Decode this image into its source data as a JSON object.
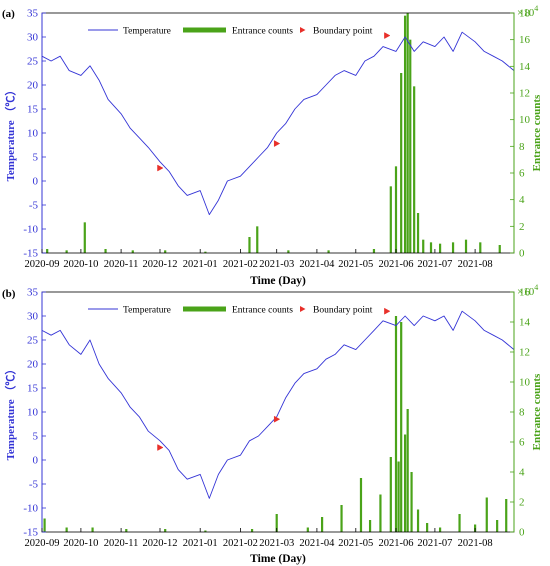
{
  "chart_data": [
    {
      "panel_label": "(a)",
      "type": "line+bar",
      "title": "",
      "xlabel": "Time (Day)",
      "ylabel_left": "Temperature （℃）",
      "ylabel_right": "Entrance counts",
      "y_right_scale_label": "×10",
      "y_right_scale_exp": "4",
      "xlim": [
        "2020-09-01",
        "2021-08-31"
      ],
      "ylim_left": [
        -15,
        35
      ],
      "ylim_right": [
        0,
        18
      ],
      "y_left_ticks": [
        -15,
        -10,
        -5,
        0,
        5,
        10,
        15,
        20,
        25,
        30,
        35
      ],
      "y_right_ticks": [
        0,
        2,
        4,
        6,
        8,
        10,
        12,
        14,
        16,
        18
      ],
      "x_ticks": [
        "2020-09",
        "2020-10",
        "2020-11",
        "2020-12",
        "2021-01",
        "2021-02",
        "2021-03",
        "2021-04",
        "2021-05",
        "2021-06",
        "2021-07",
        "2021-08"
      ],
      "legend_position": "top",
      "grid": false,
      "series": [
        {
          "name": "Temperature",
          "axis": "left",
          "kind": "line",
          "color": "#3434d6",
          "x": [
            "2020-09-01",
            "2020-09-08",
            "2020-09-15",
            "2020-09-22",
            "2020-10-01",
            "2020-10-08",
            "2020-10-15",
            "2020-10-22",
            "2020-11-01",
            "2020-11-08",
            "2020-11-15",
            "2020-11-22",
            "2020-12-01",
            "2020-12-08",
            "2020-12-15",
            "2020-12-22",
            "2021-01-01",
            "2021-01-08",
            "2021-01-15",
            "2021-01-22",
            "2021-02-01",
            "2021-02-08",
            "2021-02-15",
            "2021-02-22",
            "2021-03-01",
            "2021-03-08",
            "2021-03-15",
            "2021-03-22",
            "2021-04-01",
            "2021-04-08",
            "2021-04-15",
            "2021-04-22",
            "2021-05-01",
            "2021-05-08",
            "2021-05-15",
            "2021-05-22",
            "2021-06-01",
            "2021-06-08",
            "2021-06-15",
            "2021-06-22",
            "2021-07-01",
            "2021-07-08",
            "2021-07-15",
            "2021-07-22",
            "2021-08-01",
            "2021-08-08",
            "2021-08-15",
            "2021-08-22",
            "2021-08-31"
          ],
          "values": [
            26,
            25,
            26,
            23,
            22,
            24,
            21,
            17,
            14,
            11,
            9,
            7,
            4,
            2,
            -1,
            -3,
            -2,
            -7,
            -4,
            0,
            1,
            3,
            5,
            7,
            10,
            12,
            15,
            17,
            18,
            20,
            22,
            23,
            22,
            25,
            26,
            28,
            27,
            30,
            27,
            29,
            28,
            30,
            27,
            31,
            29,
            27,
            26,
            25,
            23
          ]
        },
        {
          "name": "Entrance counts",
          "axis": "right",
          "kind": "bar",
          "color": "#4aa319",
          "x": [
            "2020-09-05",
            "2020-09-20",
            "2020-10-04",
            "2020-10-20",
            "2020-11-10",
            "2020-12-05",
            "2021-01-05",
            "2021-02-08",
            "2021-02-14",
            "2021-03-10",
            "2021-04-10",
            "2021-05-15",
            "2021-05-28",
            "2021-06-01",
            "2021-06-05",
            "2021-06-08",
            "2021-06-10",
            "2021-06-12",
            "2021-06-15",
            "2021-06-18",
            "2021-06-22",
            "2021-06-28",
            "2021-07-05",
            "2021-07-15",
            "2021-07-25",
            "2021-08-05",
            "2021-08-20"
          ],
          "values": [
            0.3,
            0.2,
            2.3,
            0.3,
            0.2,
            0.2,
            0.1,
            1.2,
            2.0,
            0.2,
            0.2,
            0.3,
            5.0,
            6.5,
            13.5,
            17.8,
            18.0,
            16.0,
            12.5,
            3.0,
            1.0,
            0.8,
            0.7,
            0.8,
            1.0,
            0.8,
            0.6
          ]
        }
      ],
      "boundary_points": {
        "name": "Boundary point",
        "color": "#e8302a",
        "x": [
          "2020-12-01",
          "2021-03-01",
          "2021-05-25"
        ],
        "values": [
          2.7,
          7.8,
          30.3
        ]
      }
    },
    {
      "panel_label": "(b)",
      "type": "line+bar",
      "title": "",
      "xlabel": "Time (Day)",
      "ylabel_left": "Temperature （℃）",
      "ylabel_right": "Entrance counts",
      "y_right_scale_label": "×10",
      "y_right_scale_exp": "4",
      "xlim": [
        "2020-09-01",
        "2021-08-31"
      ],
      "ylim_left": [
        -15,
        35
      ],
      "ylim_right": [
        0,
        16
      ],
      "y_left_ticks": [
        -15,
        -10,
        -5,
        0,
        5,
        10,
        15,
        20,
        25,
        30,
        35
      ],
      "y_right_ticks": [
        0,
        2,
        4,
        6,
        8,
        10,
        12,
        14,
        16
      ],
      "x_ticks": [
        "2020-09",
        "2020-10",
        "2020-11",
        "2020-12",
        "2021-01",
        "2021-02",
        "2021-03",
        "2021-04",
        "2021-05",
        "2021-06",
        "2021-07",
        "2021-08"
      ],
      "legend_position": "top",
      "grid": false,
      "series": [
        {
          "name": "Temperature",
          "axis": "left",
          "kind": "line",
          "color": "#3434d6",
          "x": [
            "2020-09-01",
            "2020-09-08",
            "2020-09-15",
            "2020-09-22",
            "2020-10-01",
            "2020-10-08",
            "2020-10-15",
            "2020-10-22",
            "2020-11-01",
            "2020-11-08",
            "2020-11-15",
            "2020-11-22",
            "2020-12-01",
            "2020-12-08",
            "2020-12-15",
            "2020-12-22",
            "2021-01-01",
            "2021-01-08",
            "2021-01-15",
            "2021-01-22",
            "2021-02-01",
            "2021-02-08",
            "2021-02-15",
            "2021-02-22",
            "2021-03-01",
            "2021-03-08",
            "2021-03-15",
            "2021-03-22",
            "2021-04-01",
            "2021-04-08",
            "2021-04-15",
            "2021-04-22",
            "2021-05-01",
            "2021-05-08",
            "2021-05-15",
            "2021-05-22",
            "2021-06-01",
            "2021-06-08",
            "2021-06-15",
            "2021-06-22",
            "2021-07-01",
            "2021-07-08",
            "2021-07-15",
            "2021-07-22",
            "2021-08-01",
            "2021-08-08",
            "2021-08-15",
            "2021-08-22",
            "2021-08-31"
          ],
          "values": [
            27,
            26,
            27,
            24,
            22,
            25,
            20,
            17,
            14,
            11,
            9,
            6,
            4,
            2,
            -2,
            -4,
            -3,
            -8,
            -3,
            0,
            1,
            4,
            5,
            7,
            9,
            13,
            16,
            18,
            19,
            21,
            22,
            24,
            23,
            25,
            27,
            29,
            28,
            30,
            28,
            30,
            29,
            30,
            27,
            31,
            29,
            27,
            26,
            25,
            23
          ]
        },
        {
          "name": "Entrance counts",
          "axis": "right",
          "kind": "bar",
          "color": "#4aa319",
          "x": [
            "2020-09-03",
            "2020-09-20",
            "2020-10-10",
            "2020-11-05",
            "2020-12-05",
            "2021-01-05",
            "2021-02-10",
            "2021-03-01",
            "2021-03-25",
            "2021-04-05",
            "2021-04-20",
            "2021-05-05",
            "2021-05-12",
            "2021-05-20",
            "2021-05-28",
            "2021-06-01",
            "2021-06-03",
            "2021-06-05",
            "2021-06-08",
            "2021-06-10",
            "2021-06-13",
            "2021-06-18",
            "2021-06-25",
            "2021-07-05",
            "2021-07-20",
            "2021-08-01",
            "2021-08-10",
            "2021-08-18",
            "2021-08-25"
          ],
          "values": [
            0.9,
            0.3,
            0.3,
            0.2,
            0.2,
            0.1,
            0.2,
            1.2,
            0.3,
            1.0,
            1.8,
            3.6,
            0.8,
            2.5,
            5.0,
            14.4,
            4.7,
            14.0,
            6.5,
            8.2,
            4.0,
            1.5,
            0.6,
            0.3,
            1.2,
            0.5,
            2.3,
            0.8,
            2.2
          ]
        }
      ],
      "boundary_points": {
        "name": "Boundary point",
        "color": "#e8302a",
        "x": [
          "2020-12-01",
          "2021-03-01",
          "2021-05-25"
        ],
        "values": [
          2.6,
          8.5,
          31.0
        ]
      }
    }
  ]
}
